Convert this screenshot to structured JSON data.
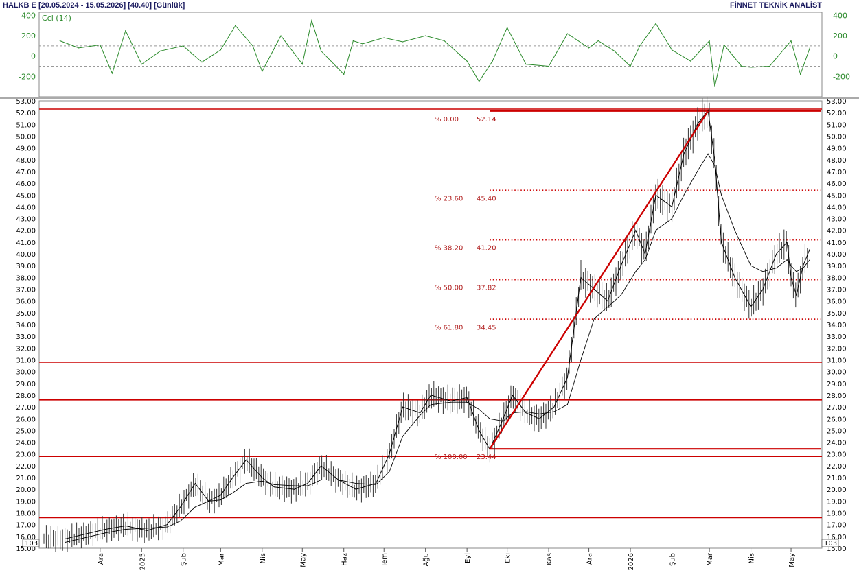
{
  "header": {
    "left": "HALKB E  [20.05.2024 - 15.05.2026]  [40.40]  [Günlük]",
    "right": "FİNNET TEKNİK ANALİST"
  },
  "colors": {
    "price": "#000000",
    "cci": "#2a8a2a",
    "lines": "#cc0000",
    "fib": "#b22222",
    "axis_text": "#1c1c60"
  },
  "chart_data": [
    {
      "type": "line",
      "title": "Cci (14)",
      "yticks": [
        400,
        200,
        0,
        -200
      ],
      "ylim": [
        -400,
        430
      ],
      "guide_levels": [
        100,
        -100
      ],
      "x": [
        "2024-11-01",
        "2024-11-15",
        "2024-12-01",
        "2024-12-10",
        "2024-12-20",
        "2025-01-01",
        "2025-01-15",
        "2025-02-01",
        "2025-02-15",
        "2025-03-01",
        "2025-03-12",
        "2025-03-25",
        "2025-04-01",
        "2025-04-15",
        "2025-05-01",
        "2025-05-08",
        "2025-05-15",
        "2025-06-01",
        "2025-06-08",
        "2025-06-15",
        "2025-07-01",
        "2025-07-15",
        "2025-08-01",
        "2025-08-15",
        "2025-09-01",
        "2025-09-10",
        "2025-09-20",
        "2025-10-01",
        "2025-10-15",
        "2025-11-01",
        "2025-11-15",
        "2025-12-01",
        "2025-12-08",
        "2025-12-20",
        "2026-01-01",
        "2026-01-08",
        "2026-01-20",
        "2026-02-01",
        "2026-02-15",
        "2026-03-01",
        "2026-03-05",
        "2026-03-12",
        "2026-03-25",
        "2026-04-01",
        "2026-04-15",
        "2026-05-01",
        "2026-05-08",
        "2026-05-15"
      ],
      "values": [
        150,
        80,
        110,
        -170,
        250,
        -80,
        50,
        100,
        -60,
        60,
        300,
        100,
        -150,
        200,
        -80,
        350,
        50,
        -180,
        150,
        120,
        180,
        140,
        200,
        150,
        -50,
        -250,
        -50,
        280,
        -80,
        -100,
        220,
        80,
        150,
        50,
        -100,
        100,
        320,
        60,
        -50,
        150,
        -300,
        110,
        -100,
        -110,
        -100,
        150,
        -180,
        80
      ]
    },
    {
      "type": "line",
      "series": [
        {
          "values": [
            15.8,
            16.2,
            16.6,
            16.9,
            16.5,
            17.0,
            18.5,
            20.5,
            19.0,
            19.5,
            21.0,
            22.5,
            21.0,
            20.2,
            20.0,
            20.5,
            22.0,
            20.8,
            20.0,
            20.5,
            23.0,
            27.0,
            26.5,
            28.0,
            27.5,
            27.8,
            25.0,
            23.4,
            26.0,
            28.0,
            26.5,
            26.0,
            27.0,
            29.5,
            38.0,
            37.0,
            36.0,
            39.0,
            42.0,
            40.0,
            45.0,
            44.0,
            48.5,
            51.0,
            52.2,
            48.0,
            41.0,
            38.0,
            35.5,
            37.0,
            40.0,
            41.0,
            38.0,
            36.5,
            39.0,
            40.4
          ]
        },
        {
          "values": [
            15.5,
            15.9,
            16.3,
            16.6,
            16.7,
            16.8,
            17.3,
            18.5,
            19.0,
            19.1,
            19.7,
            20.5,
            20.7,
            20.4,
            20.3,
            20.3,
            20.8,
            20.8,
            20.5,
            20.4,
            21.5,
            24.5,
            26.3,
            27.2,
            27.4,
            27.4,
            26.8,
            26.0,
            25.8,
            26.5,
            26.6,
            26.4,
            26.6,
            27.2,
            31.0,
            34.5,
            35.5,
            36.5,
            38.5,
            39.5,
            42.0,
            43.0,
            45.0,
            47.0,
            48.5,
            47.5,
            45.0,
            42.0,
            39.0,
            38.5,
            38.8,
            39.5,
            39.0,
            38.5,
            38.8,
            39.5
          ]
        }
      ],
      "x": [
        "2024-11-05",
        "2024-11-20",
        "2024-12-05",
        "2024-12-20",
        "2025-01-05",
        "2025-01-20",
        "2025-01-30",
        "2025-02-10",
        "2025-02-20",
        "2025-03-01",
        "2025-03-10",
        "2025-03-20",
        "2025-04-01",
        "2025-04-10",
        "2025-04-25",
        "2025-05-05",
        "2025-05-15",
        "2025-05-28",
        "2025-06-10",
        "2025-06-25",
        "2025-07-05",
        "2025-07-15",
        "2025-07-28",
        "2025-08-05",
        "2025-08-20",
        "2025-09-01",
        "2025-09-10",
        "2025-09-18",
        "2025-09-28",
        "2025-10-05",
        "2025-10-15",
        "2025-10-25",
        "2025-11-05",
        "2025-11-15",
        "2025-11-25",
        "2025-12-05",
        "2025-12-15",
        "2025-12-25",
        "2026-01-05",
        "2026-01-12",
        "2026-01-20",
        "2026-02-01",
        "2026-02-10",
        "2026-02-20",
        "2026-02-28",
        "2026-03-05",
        "2026-03-10",
        "2026-03-20",
        "2026-04-01",
        "2026-04-10",
        "2026-04-20",
        "2026-04-28",
        "2026-05-01",
        "2026-05-05",
        "2026-05-10",
        "2026-05-15"
      ],
      "yticks": [
        15,
        16,
        17,
        18,
        19,
        20,
        21,
        22,
        23,
        24,
        25,
        26,
        27,
        28,
        29,
        30,
        31,
        32,
        33,
        34,
        35,
        36,
        37,
        38,
        39,
        40,
        41,
        42,
        43,
        44,
        45,
        46,
        47,
        48,
        49,
        50,
        51,
        52,
        53
      ],
      "ylim": [
        15,
        53
      ],
      "y_unit_label": "10^3",
      "xtick_labels": [
        "Ara",
        "2025",
        "Şub",
        "Mar",
        "Nis",
        "May",
        "Haz",
        "Tem",
        "Ağu",
        "Eyl",
        "Eki",
        "Kas",
        "Ara",
        "2026",
        "Şub",
        "Mar",
        "Nis",
        "May"
      ],
      "horizontal_levels": [
        52.3,
        30.8,
        27.6,
        22.8,
        17.6
      ],
      "trendline": {
        "from": [
          "2025-09-18",
          23.44
        ],
        "to": [
          "2026-02-28",
          52.14
        ]
      },
      "fibonacci": [
        {
          "pct": "% 0.00",
          "value": "52.14",
          "solid": true
        },
        {
          "pct": "% 23.60",
          "value": "45.40",
          "solid": false
        },
        {
          "pct": "% 38.20",
          "value": "41.20",
          "solid": false
        },
        {
          "pct": "% 50.00",
          "value": "37.82",
          "solid": false
        },
        {
          "pct": "% 61.80",
          "value": "34.45",
          "solid": false
        },
        {
          "pct": "% 100.00",
          "value": "23.44",
          "solid": true
        }
      ]
    }
  ]
}
